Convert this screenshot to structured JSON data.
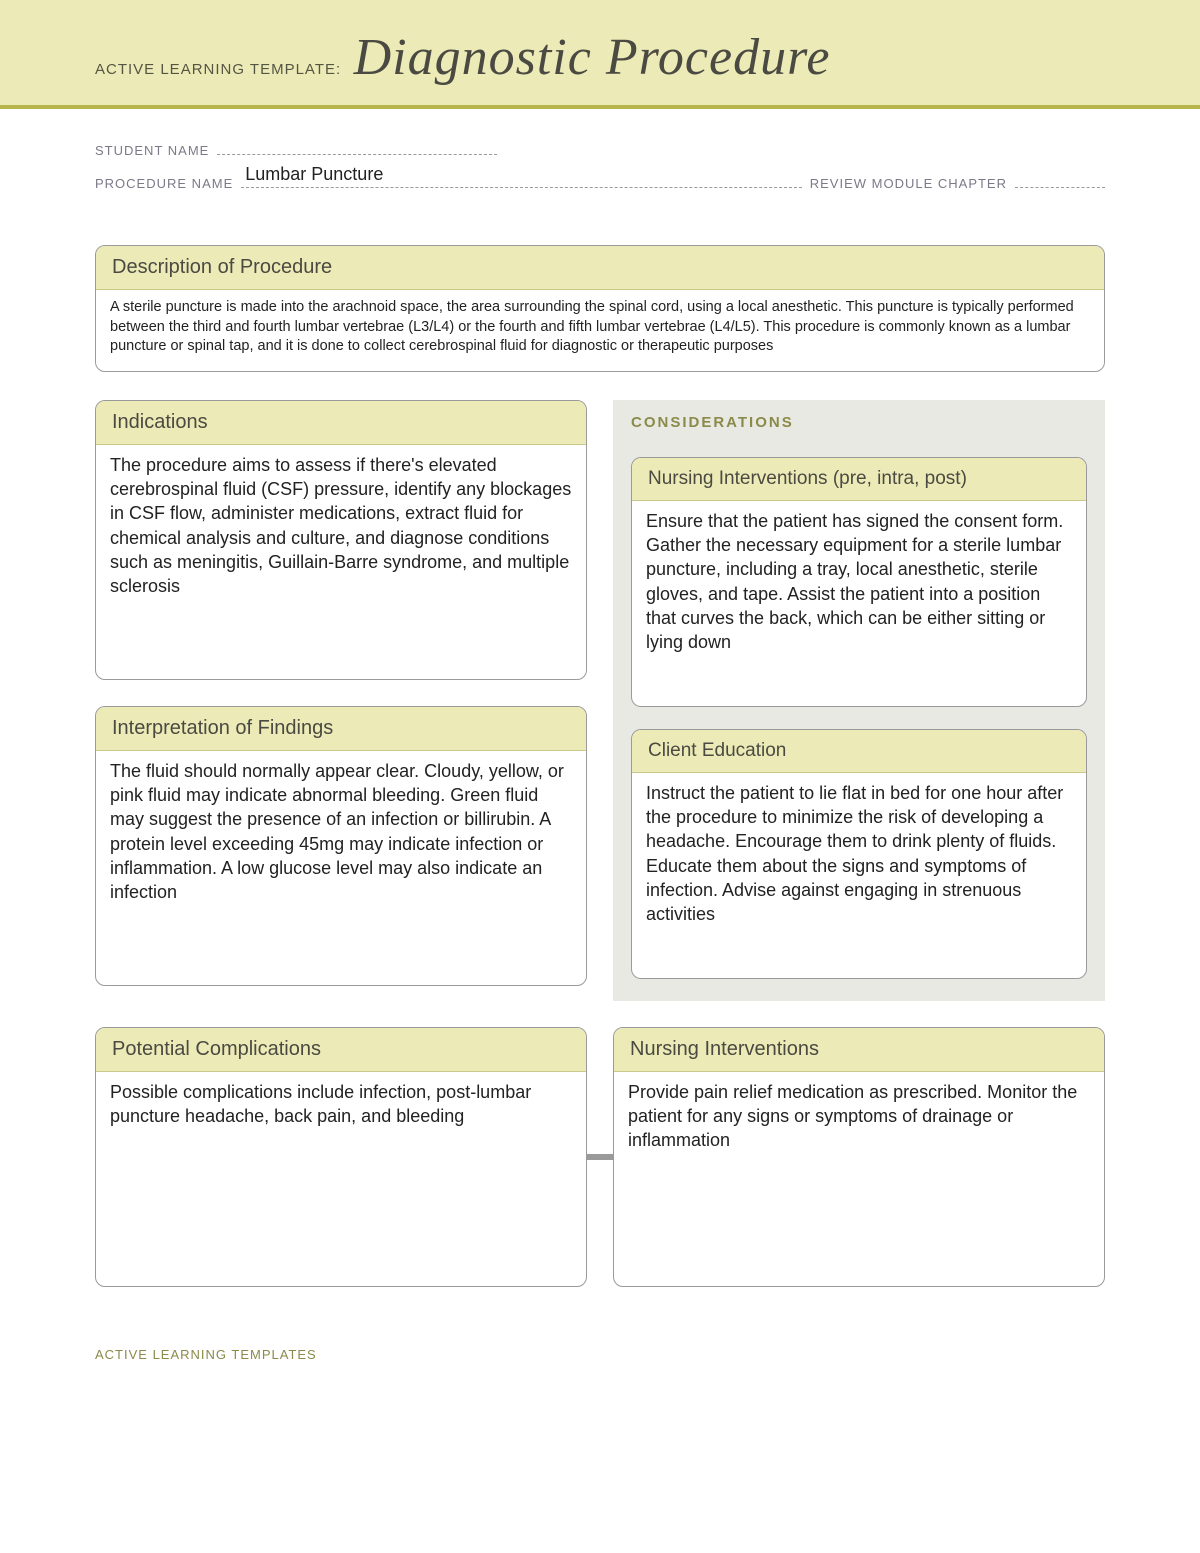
{
  "header": {
    "prefix": "ACTIVE LEARNING TEMPLATE:",
    "title": "Diagnostic Procedure"
  },
  "meta": {
    "student_label": "STUDENT NAME",
    "student_value": "",
    "procedure_label": "PROCEDURE NAME",
    "procedure_value": "Lumbar Puncture",
    "review_label": "REVIEW MODULE CHAPTER",
    "review_value": ""
  },
  "colors": {
    "band_bg": "#ecebb7",
    "band_border": "#b6b54a",
    "box_border": "#9a9a9a",
    "considerations_bg": "#e9e9e3",
    "text_muted": "#7a7a88",
    "text_heading": "#4a4a42"
  },
  "sections": {
    "description": {
      "title": "Description of Procedure",
      "body": "A sterile puncture is made into the arachnoid space, the area surrounding the spinal cord, using a local anesthetic. This puncture is typically performed between the third and fourth lumbar vertebrae (L3/L4) or the fourth and fifth lumbar vertebrae (L4/L5). This procedure is commonly known as a lumbar puncture or spinal tap, and it is done to collect cerebrospinal fluid for diagnostic or therapeutic purposes"
    },
    "indications": {
      "title": "Indications",
      "body": "The procedure aims to assess if there's elevated cerebrospinal fluid (CSF) pressure, identify any blockages in CSF flow, administer medications, extract fluid for chemical analysis and culture, and diagnose conditions such as meningitis, Guillain-Barre syndrome, and multiple sclerosis"
    },
    "interpretation": {
      "title": "Interpretation of Findings",
      "body": "The fluid should normally appear clear. Cloudy, yellow, or pink fluid may indicate abnormal bleeding. Green fluid may suggest the presence of an infection or billirubin. A protein level exceeding 45mg may indicate infection or inflammation. A low glucose level may also indicate an infection"
    },
    "considerations_title": "CONSIDERATIONS",
    "nursing_pre": {
      "title": "Nursing Interventions (pre, intra, post)",
      "body": "Ensure that the patient has signed the consent form. Gather the necessary equipment for a sterile lumbar puncture, including a tray, local anesthetic, sterile gloves, and tape. Assist the patient into a position that curves the back, which can be either sitting or lying down"
    },
    "client_ed": {
      "title": "Client Education",
      "body": "Instruct the patient to lie flat in bed for one hour after the procedure to minimize the risk of developing a headache. Encourage them to drink plenty of fluids. Educate them about the signs and symptoms of infection. Advise against engaging in strenuous activities"
    },
    "complications": {
      "title": "Potential Complications",
      "body": "Possible complications include infection, post-lumbar puncture headache, back pain, and bleeding"
    },
    "nursing_interventions": {
      "title": "Nursing Interventions",
      "body": "Provide pain relief medication as prescribed. Monitor the patient for any signs or symptoms of drainage or inflammation"
    }
  },
  "footer": "ACTIVE LEARNING TEMPLATES"
}
